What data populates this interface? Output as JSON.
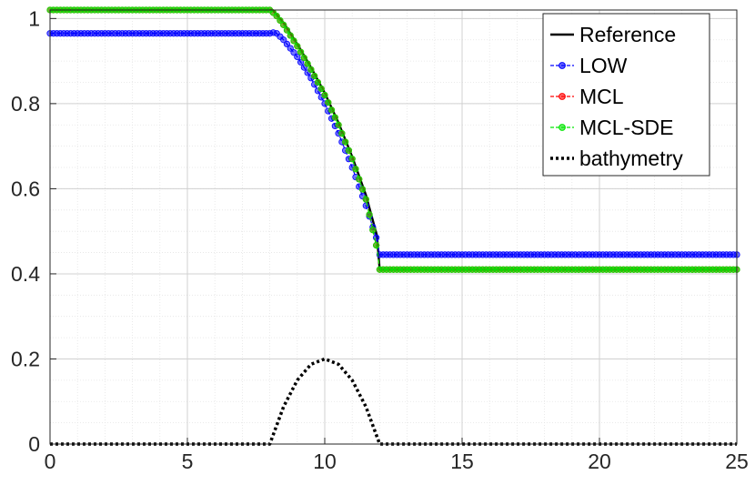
{
  "chart_data": {
    "type": "line",
    "title": "",
    "xlabel": "",
    "ylabel": "",
    "xlim": [
      0,
      25
    ],
    "ylim": [
      0,
      1.02
    ],
    "xticks": [
      0,
      5,
      10,
      15,
      20,
      25
    ],
    "yticks": [
      0,
      0.2,
      0.4,
      0.6,
      0.8,
      1
    ],
    "xtick_labels": [
      "0",
      "5",
      "10",
      "15",
      "20",
      "25"
    ],
    "ytick_labels": [
      "0",
      "0.2",
      "0.4",
      "0.6",
      "0.8",
      "1"
    ],
    "grid": "on (major and minor)",
    "legend_position": "top-right",
    "legend": [
      "Reference",
      "LOW",
      "MCL",
      "MCL-SDE",
      "bathymetry"
    ],
    "series": [
      {
        "name": "Reference",
        "color": "#000000",
        "style": "solid",
        "marker": "none",
        "x": [
          0,
          8.1,
          8.5,
          9.0,
          9.5,
          10.0,
          10.5,
          11.0,
          11.5,
          11.9,
          12.0,
          25
        ],
        "y": [
          1.02,
          1.02,
          0.99,
          0.94,
          0.885,
          0.825,
          0.755,
          0.675,
          0.585,
          0.49,
          0.41,
          0.41
        ]
      },
      {
        "name": "LOW",
        "color": "#0000ff",
        "style": "dashed",
        "marker": "circle",
        "x": [
          0,
          8.0,
          8.2,
          8.5,
          9.0,
          9.5,
          10.0,
          10.5,
          11.0,
          11.5,
          11.9,
          12.0,
          25
        ],
        "y": [
          0.965,
          0.965,
          0.968,
          0.95,
          0.91,
          0.86,
          0.8,
          0.73,
          0.65,
          0.56,
          0.48,
          0.445,
          0.445
        ]
      },
      {
        "name": "MCL",
        "color": "#ff0000",
        "style": "dashed",
        "marker": "circle",
        "x": [
          0,
          8.0,
          8.2,
          8.5,
          9.0,
          9.5,
          10.0,
          10.5,
          11.0,
          11.5,
          11.9,
          12.0,
          25
        ],
        "y": [
          1.02,
          1.02,
          1.01,
          0.985,
          0.935,
          0.88,
          0.82,
          0.75,
          0.67,
          0.575,
          0.46,
          0.41,
          0.41
        ]
      },
      {
        "name": "MCL-SDE",
        "color": "#00e600",
        "style": "dashed",
        "marker": "circle",
        "x": [
          0,
          8.0,
          8.2,
          8.5,
          9.0,
          9.5,
          10.0,
          10.5,
          11.0,
          11.5,
          11.9,
          12.0,
          25
        ],
        "y": [
          1.02,
          1.02,
          1.01,
          0.985,
          0.935,
          0.88,
          0.82,
          0.75,
          0.67,
          0.575,
          0.46,
          0.41,
          0.41
        ]
      },
      {
        "name": "bathymetry",
        "color": "#000000",
        "style": "dotted",
        "marker": "none",
        "x": [
          0,
          8.0,
          8.5,
          9.0,
          9.5,
          10.0,
          10.5,
          11.0,
          11.5,
          12.0,
          25
        ],
        "y": [
          0,
          0,
          0.0875,
          0.15,
          0.1875,
          0.2,
          0.1875,
          0.15,
          0.0875,
          0,
          0
        ]
      }
    ]
  }
}
